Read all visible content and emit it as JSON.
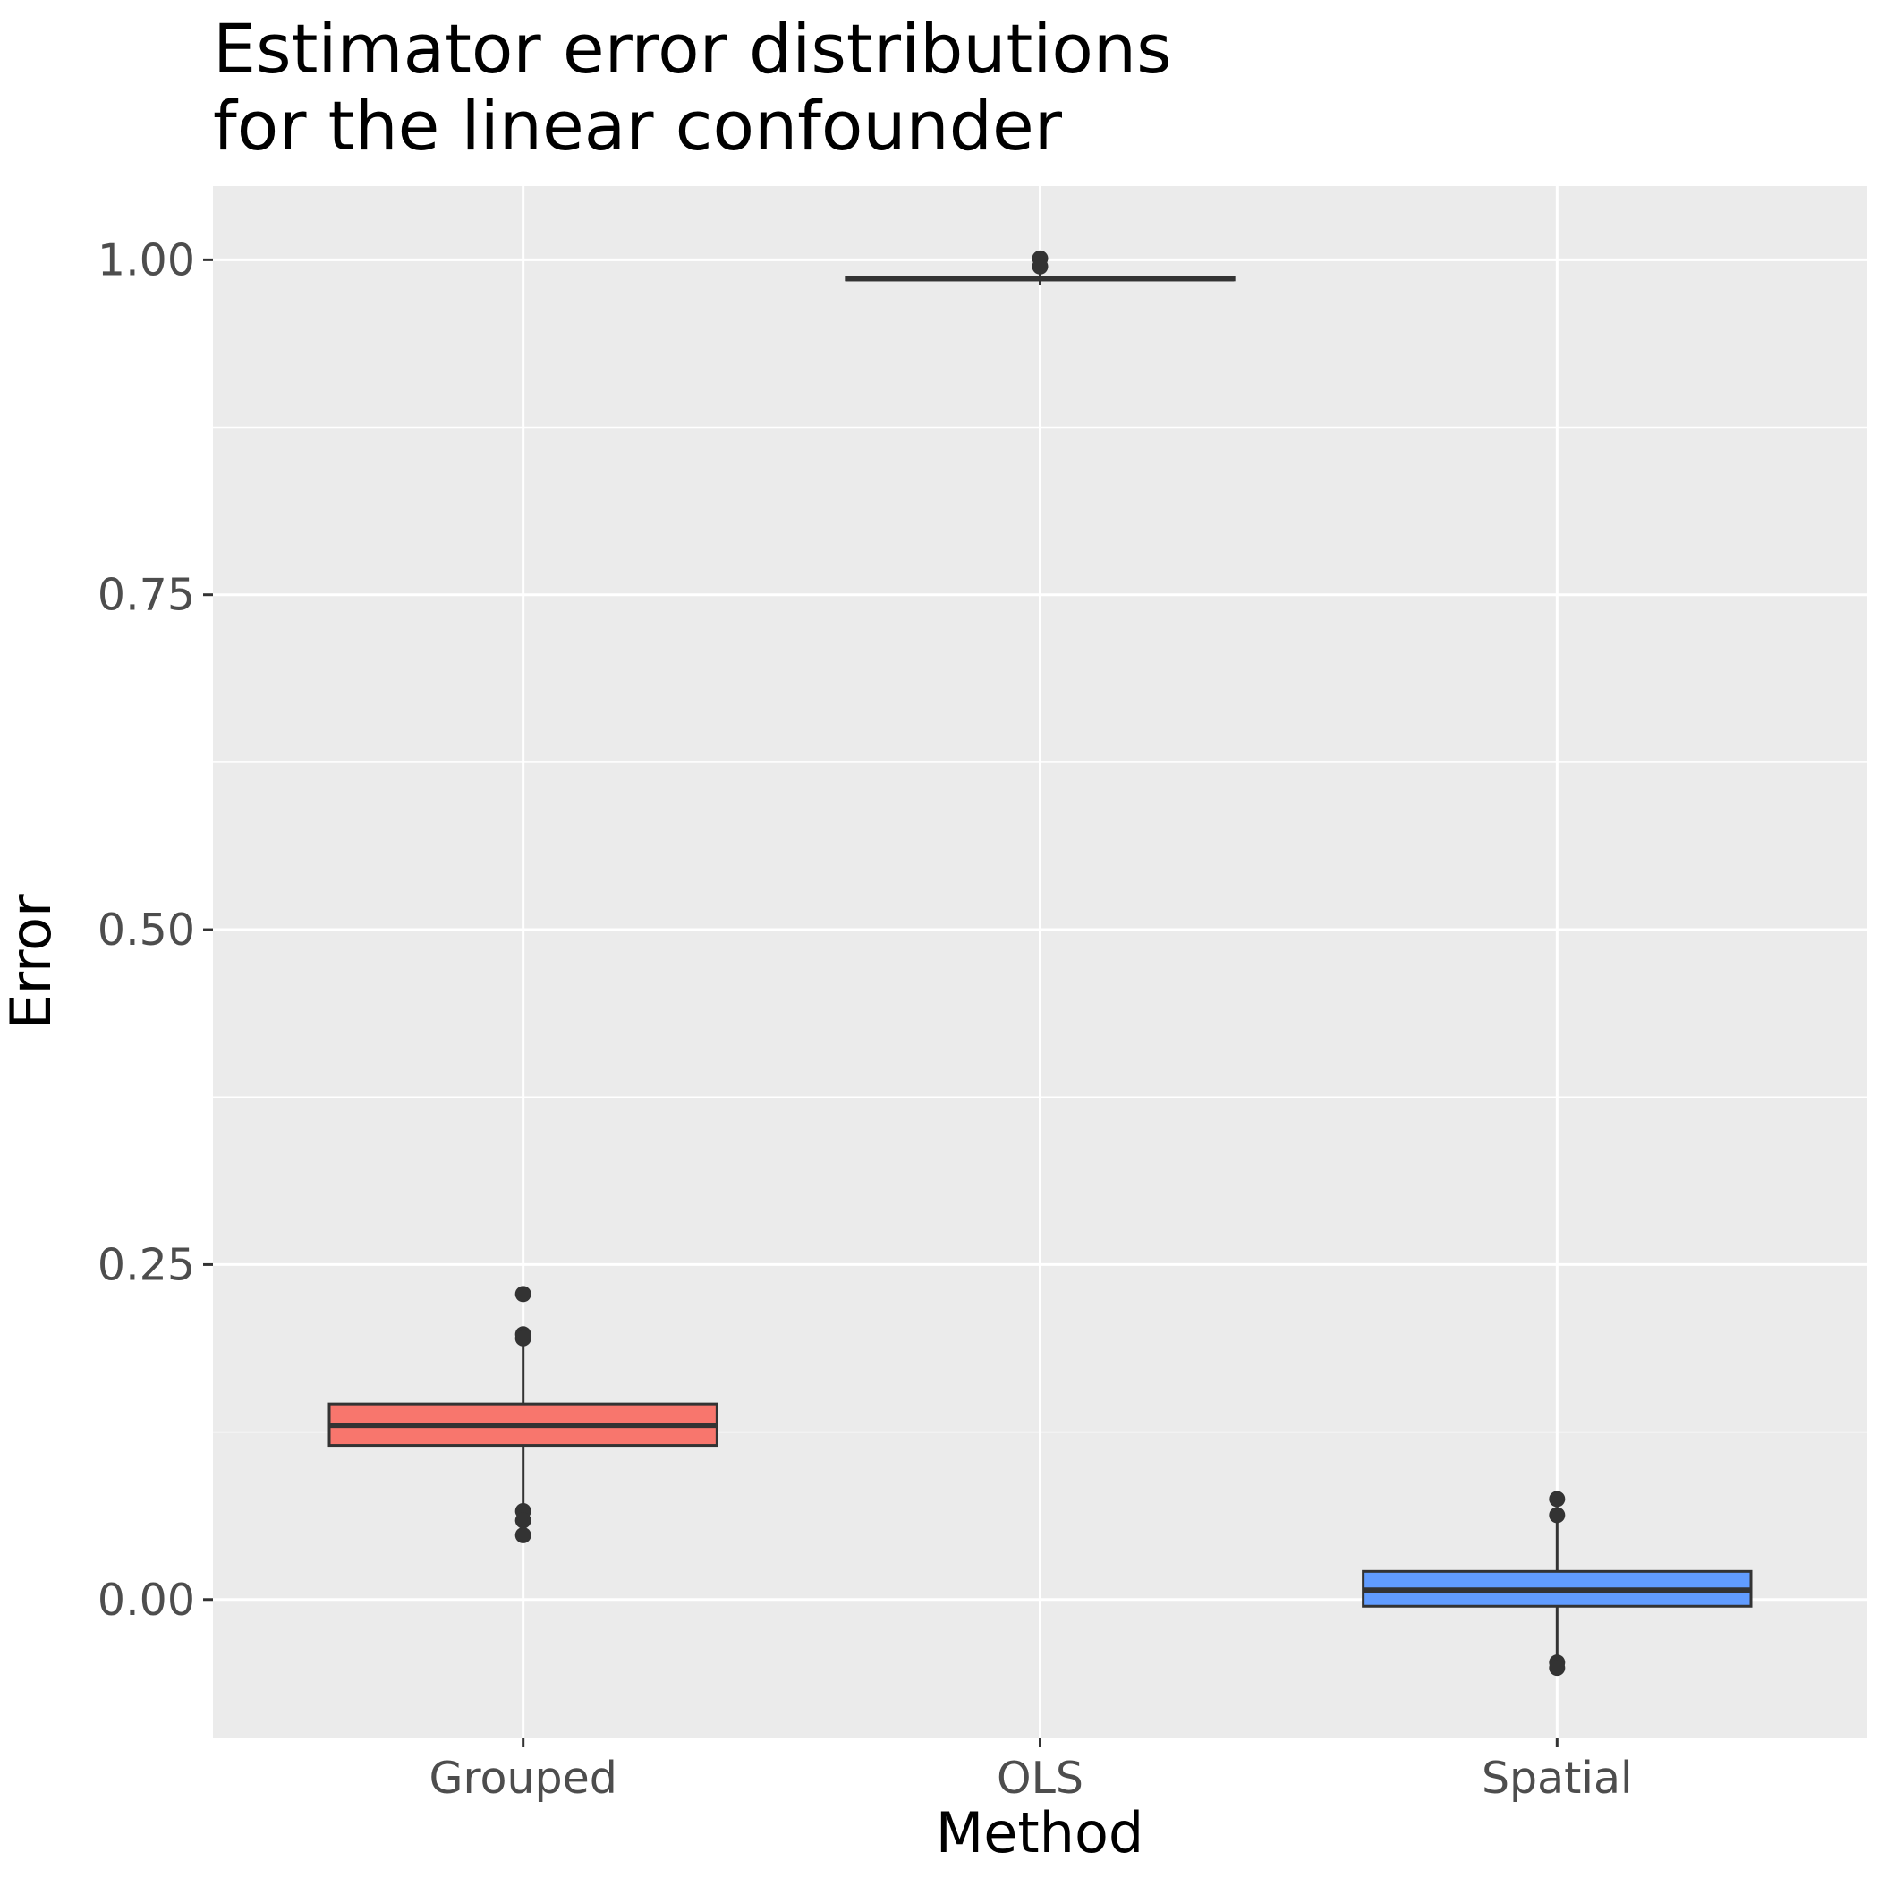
{
  "chart_data": {
    "type": "boxplot",
    "title_lines": [
      "Estimator error distributions",
      "for the linear confounder"
    ],
    "xlabel": "Method",
    "ylabel": "Error",
    "ylim": [
      -0.103,
      1.055
    ],
    "yticks": [
      0.0,
      0.25,
      0.5,
      0.75,
      1.0
    ],
    "ytick_labels": [
      "0.00",
      "0.25",
      "0.50",
      "0.75",
      "1.00"
    ],
    "grid": true,
    "legend": "none",
    "categories": [
      "Grouped",
      "OLS",
      "Spatial"
    ],
    "boxes": [
      {
        "category": "Grouped",
        "whisker_low": 0.07,
        "q1": 0.115,
        "median": 0.13,
        "q3": 0.146,
        "whisker_high": 0.19,
        "outliers": [
          0.228,
          0.198,
          0.195,
          0.066,
          0.059,
          0.048
        ],
        "fill": "#F8766D"
      },
      {
        "category": "OLS",
        "whisker_low": 0.981,
        "q1": 0.985,
        "median": 0.986,
        "q3": 0.987,
        "whisker_high": 0.99,
        "outliers": [
          1.001,
          0.995
        ],
        "fill": "#00BA38"
      },
      {
        "category": "Spatial",
        "whisker_low": -0.042,
        "q1": -0.005,
        "median": 0.007,
        "q3": 0.021,
        "whisker_high": 0.058,
        "outliers": [
          0.075,
          0.063,
          -0.047,
          -0.051
        ],
        "fill": "#619CFF"
      }
    ],
    "colors": {
      "panel_background": "#EBEBEB",
      "grid": "#FFFFFF",
      "box_line": "#333333"
    }
  }
}
